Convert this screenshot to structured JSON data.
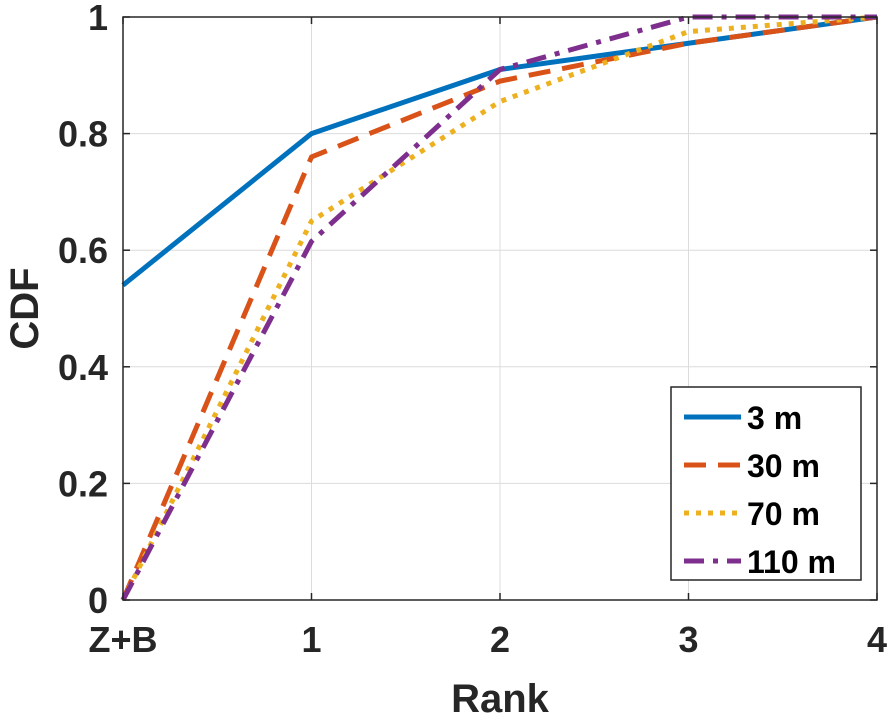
{
  "chart_data": {
    "type": "line",
    "title": "",
    "xlabel": "Rank",
    "ylabel": "CDF",
    "categories": [
      "Z+B",
      "1",
      "2",
      "3",
      "4"
    ],
    "xlim": [
      0,
      4
    ],
    "ylim": [
      0,
      1
    ],
    "yticks": [
      0,
      0.2,
      0.4,
      0.6,
      0.8,
      1
    ],
    "ytick_labels": [
      "0",
      "0.2",
      "0.4",
      "0.6",
      "0.8",
      "1"
    ],
    "grid": true,
    "legend_position": "bottom-right",
    "series": [
      {
        "name": "3 m",
        "color": "#0072BD",
        "style": "solid",
        "values": [
          0.54,
          0.8,
          0.91,
          0.955,
          1.0
        ]
      },
      {
        "name": "30 m",
        "color": "#D95319",
        "style": "dashed",
        "values": [
          0.0,
          0.76,
          0.89,
          0.955,
          1.0
        ]
      },
      {
        "name": "70 m",
        "color": "#EDB120",
        "style": "dotted",
        "values": [
          0.0,
          0.65,
          0.855,
          0.975,
          1.0
        ]
      },
      {
        "name": "110 m",
        "color": "#7E2F8E",
        "style": "dashdot",
        "values": [
          0.0,
          0.615,
          0.91,
          1.0,
          1.0
        ]
      }
    ]
  }
}
